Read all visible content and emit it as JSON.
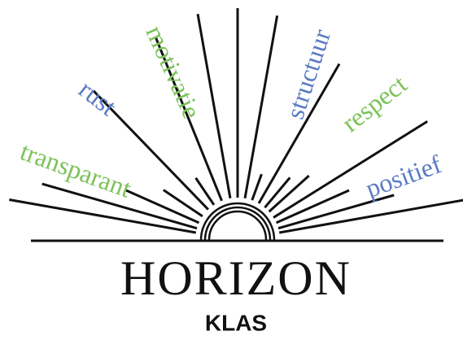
{
  "words": [
    {
      "text": "transparant",
      "color": "#7cc35a"
    },
    {
      "text": "rust",
      "color": "#5b7bc4"
    },
    {
      "text": "motivatie",
      "color": "#7cc35a"
    },
    {
      "text": "structuur",
      "color": "#5b7bc4"
    },
    {
      "text": "respect",
      "color": "#7cc35a"
    },
    {
      "text": "positief",
      "color": "#5b7bc4"
    }
  ],
  "title": "HORIZON",
  "subtitle": "KLAS"
}
